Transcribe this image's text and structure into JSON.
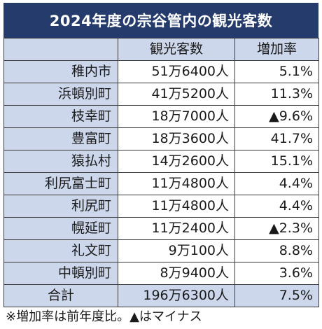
{
  "title": "2024年度の宗谷管内の観光客数",
  "table": {
    "headers": [
      "",
      "観光客数",
      "増加率"
    ],
    "rows": [
      {
        "municipality": "稚内市",
        "visitors": "51万6400人",
        "growth": "5.1%"
      },
      {
        "municipality": "浜頓別町",
        "visitors": "41万5200人",
        "growth": "11.3%"
      },
      {
        "municipality": "枝幸町",
        "visitors": "18万7000人",
        "growth": "▲9.6%"
      },
      {
        "municipality": "豊富町",
        "visitors": "18万3600人",
        "growth": "41.7%"
      },
      {
        "municipality": "猿払村",
        "visitors": "14万2600人",
        "growth": "15.1%"
      },
      {
        "municipality": "利尻富士町",
        "visitors": "11万4800人",
        "growth": "4.4%"
      },
      {
        "municipality": "利尻町",
        "visitors": "11万4800人",
        "growth": "4.4%"
      },
      {
        "municipality": "幌延町",
        "visitors": "11万2400人",
        "growth": "▲2.3%"
      },
      {
        "municipality": "礼文町",
        "visitors": "9万100人",
        "growth": "8.8%"
      },
      {
        "municipality": "中頓別町",
        "visitors": "8万9400人",
        "growth": "3.6%"
      }
    ],
    "total": {
      "label": "合計",
      "visitors": "196万6300人",
      "growth": "7.5%"
    }
  },
  "footnote": "※増加率は前年度比。▲はマイナス",
  "colors": {
    "title_background": "#243b6b",
    "header_background": "#ccd7eb",
    "border": "#3a3a3a"
  }
}
